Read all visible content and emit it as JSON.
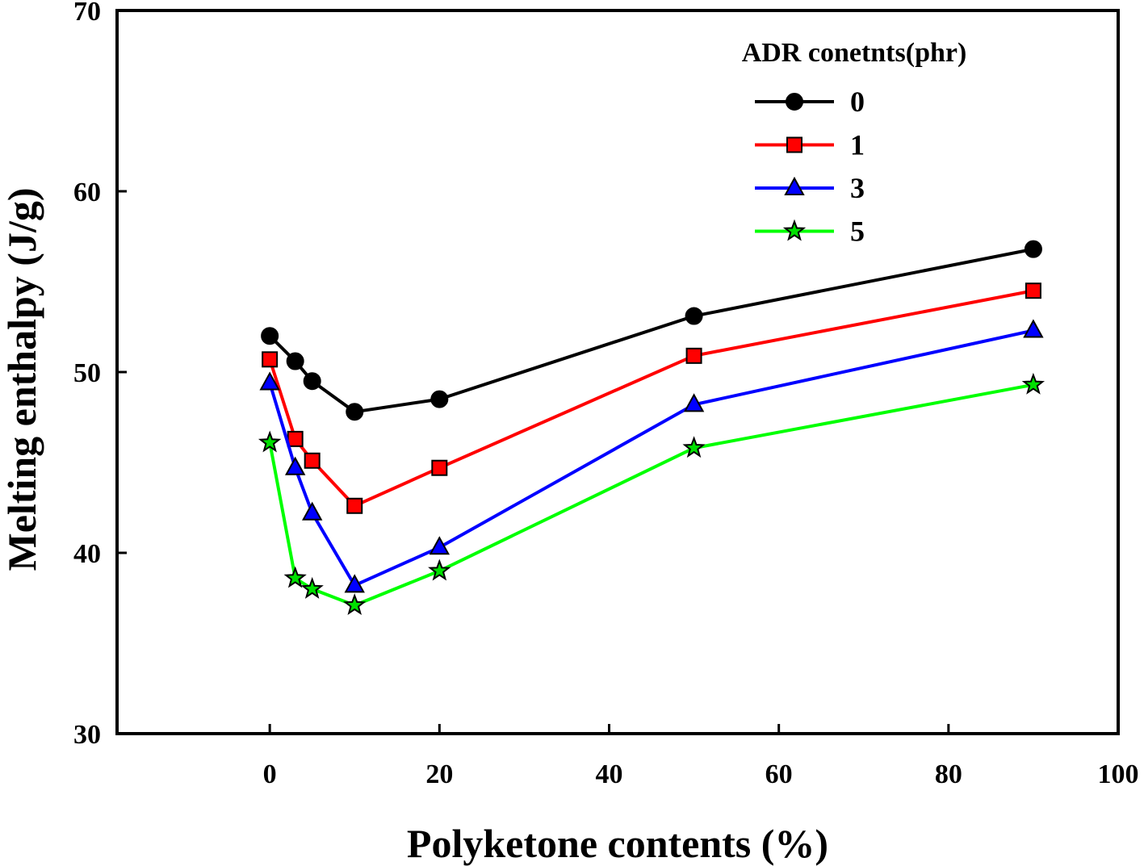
{
  "chart_data": {
    "type": "line",
    "title": "",
    "xlabel": "Polyketone contents (%)",
    "ylabel": "Melting enthalpy (J/g)",
    "xlim": [
      -18,
      100
    ],
    "ylim": [
      30,
      70
    ],
    "xticks": [
      0,
      20,
      40,
      60,
      80,
      100
    ],
    "yticks": [
      30,
      40,
      50,
      60,
      70
    ],
    "grid": false,
    "legend": {
      "title": "ADR conetnts(phr)",
      "placement": "top-right"
    },
    "x": [
      0,
      3,
      5,
      10,
      20,
      50,
      90
    ],
    "series": [
      {
        "name": "0",
        "color": "#000000",
        "marker": "circle",
        "marker_fill": "#000000",
        "values": [
          52.0,
          50.6,
          49.5,
          47.8,
          48.5,
          53.1,
          56.8
        ]
      },
      {
        "name": "1",
        "color": "#ff0000",
        "marker": "square",
        "marker_fill": "#ff0000",
        "values": [
          50.7,
          46.3,
          45.1,
          42.6,
          44.7,
          50.9,
          54.5
        ]
      },
      {
        "name": "3",
        "color": "#0000ff",
        "marker": "triangle",
        "marker_fill": "#0000ff",
        "values": [
          49.4,
          44.7,
          42.2,
          38.2,
          40.3,
          48.2,
          52.3
        ]
      },
      {
        "name": "5",
        "color": "#00ff00",
        "marker": "star",
        "marker_fill": "#00e000",
        "values": [
          46.1,
          38.6,
          38.0,
          37.1,
          39.0,
          45.8,
          49.3
        ]
      }
    ]
  }
}
